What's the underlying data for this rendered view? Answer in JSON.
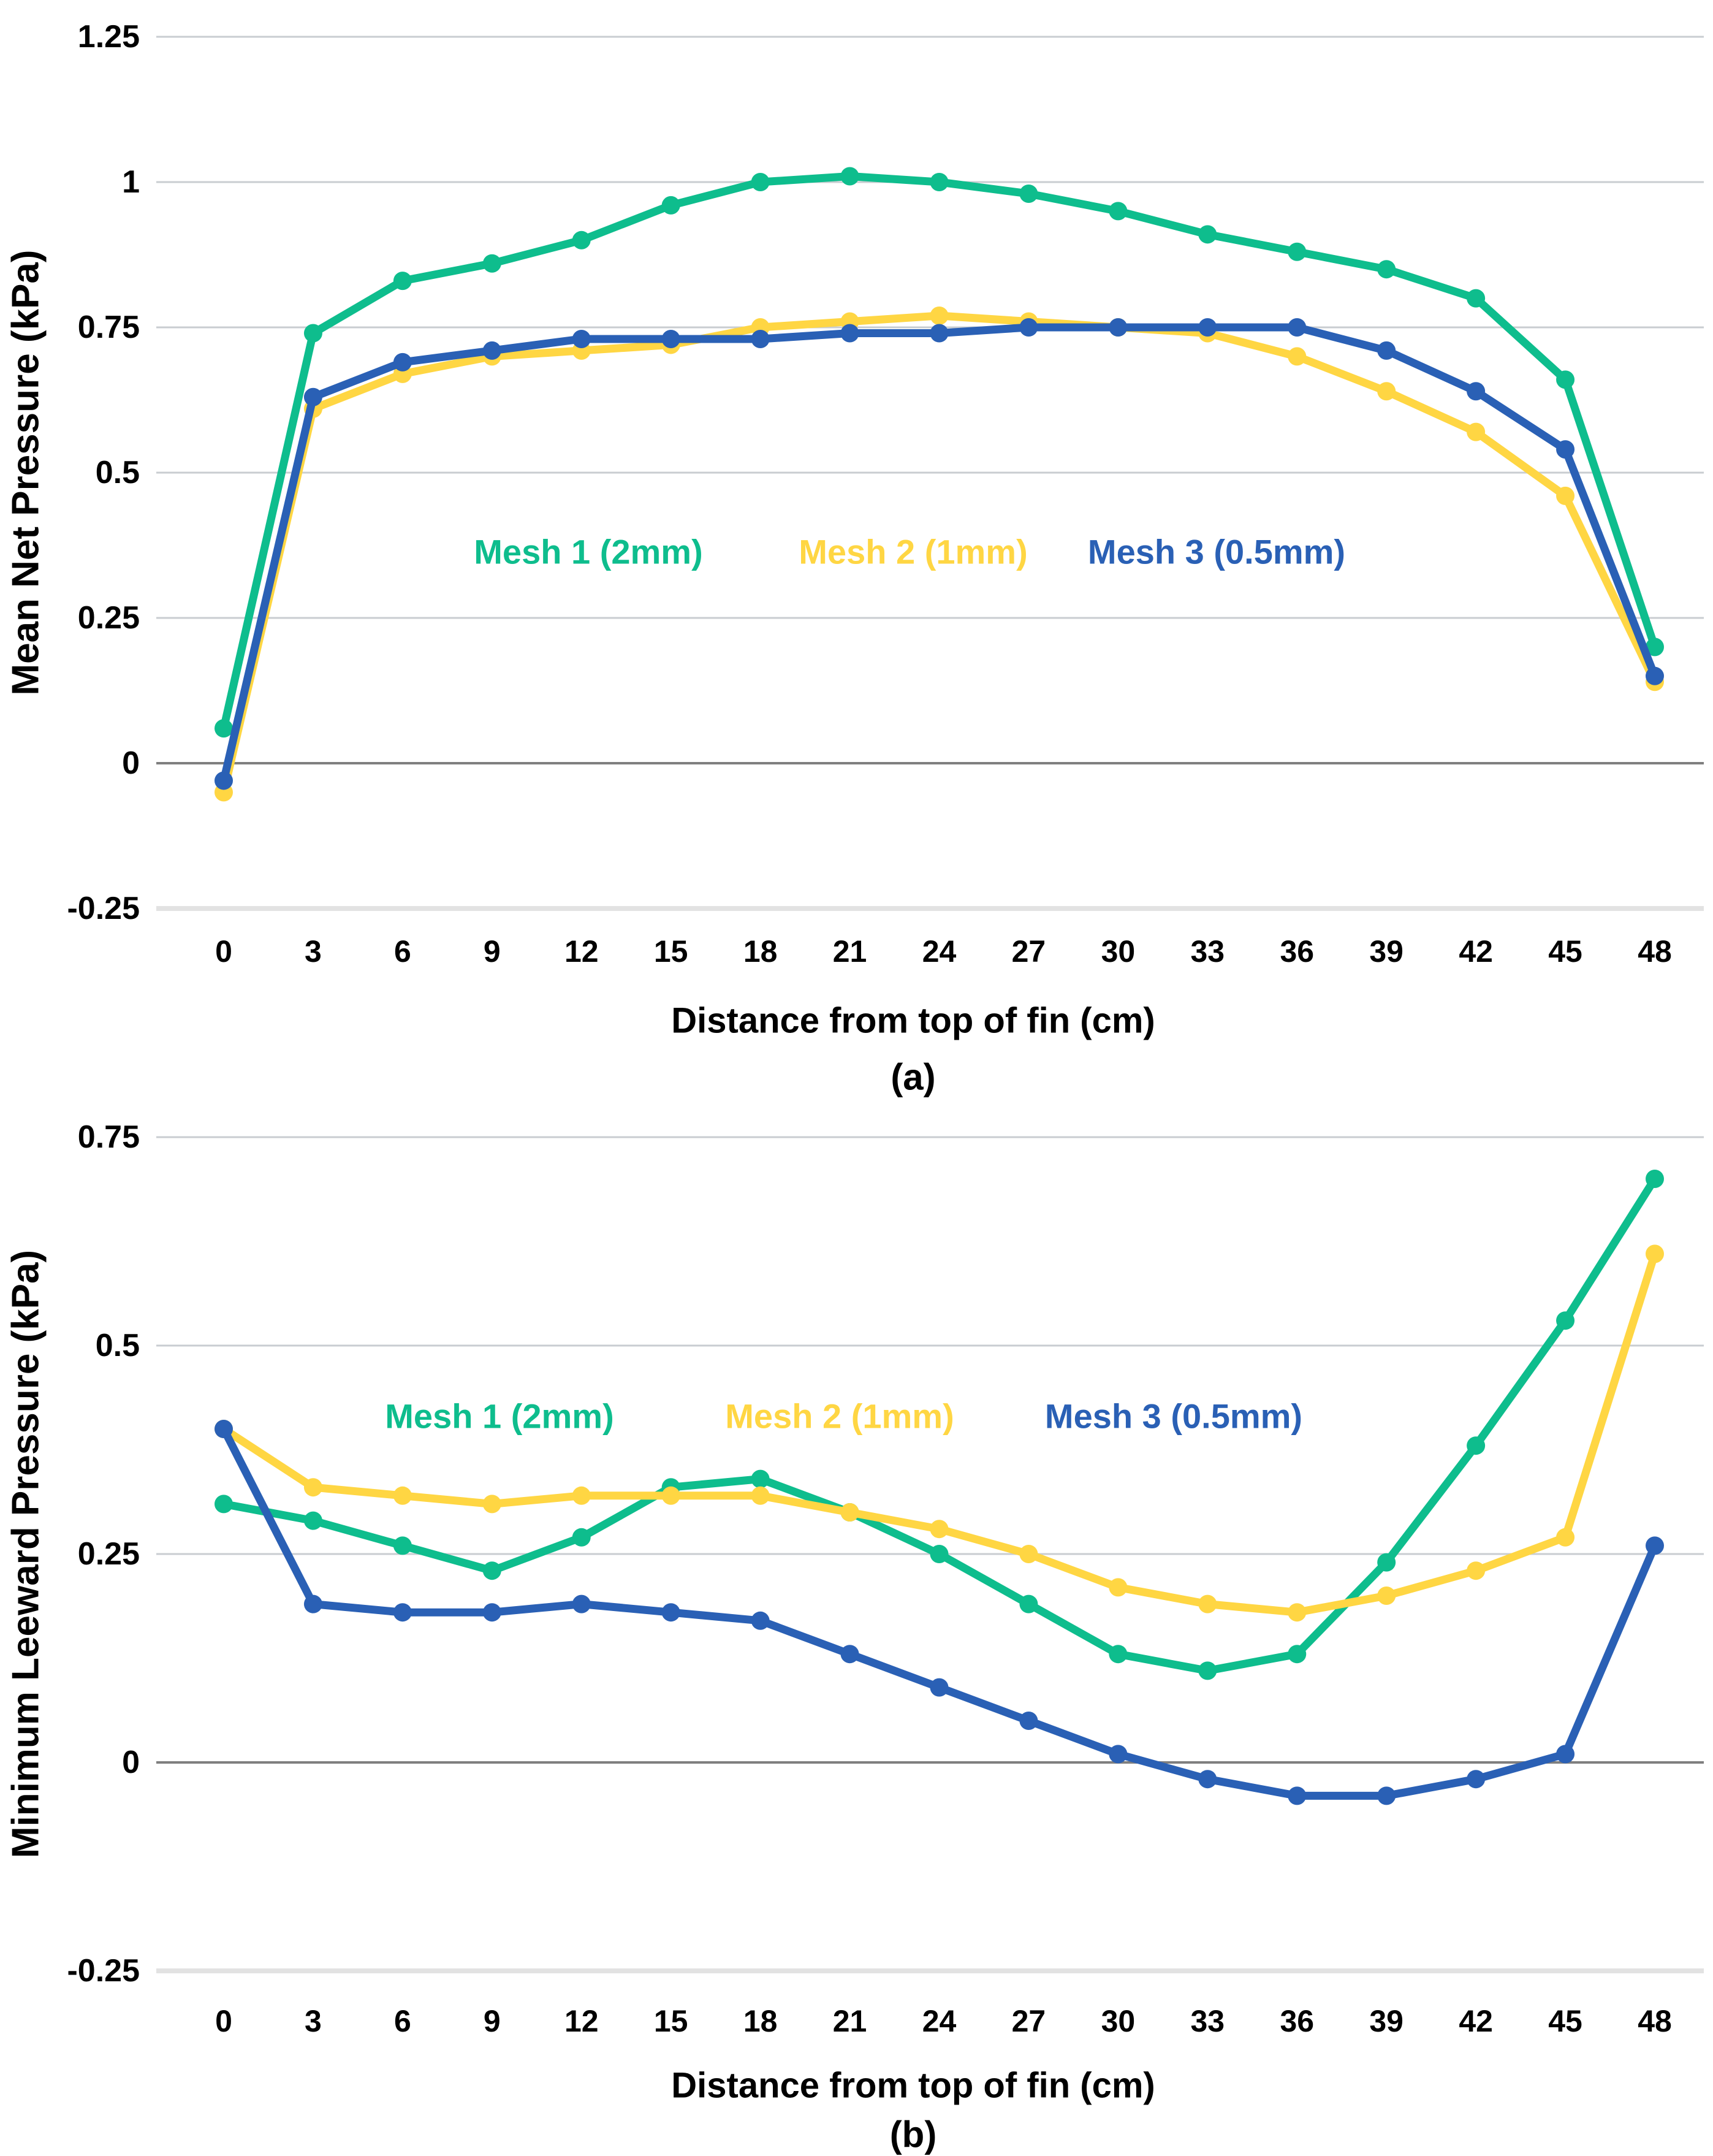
{
  "page_background": "#ffffff",
  "grid_color": "#c9cdd1",
  "zero_line_color": "#7f7f7f",
  "baseline_color": "#e2e2e2",
  "chart_data": [
    {
      "type": "line",
      "panel": "a",
      "caption": "(a)",
      "xlabel": "Distance from top of fin (cm)",
      "ylabel": "Mean Net Pressure (kPa)",
      "x": [
        0,
        3,
        6,
        9,
        12,
        15,
        18,
        21,
        24,
        27,
        30,
        33,
        36,
        39,
        42,
        45,
        48
      ],
      "xtick_labels": [
        "0",
        "3",
        "6",
        "9",
        "12",
        "15",
        "18",
        "21",
        "24",
        "27",
        "30",
        "33",
        "36",
        "39",
        "42",
        "45",
        "48"
      ],
      "ylim": [
        -0.25,
        1.25
      ],
      "yticks": [
        1.25,
        1,
        0.75,
        0.5,
        0.25,
        0,
        -0.25
      ],
      "ytick_labels": [
        "1.25",
        "1",
        "0.75",
        "0.5",
        "0.25",
        "0",
        "-0.25"
      ],
      "grid": true,
      "legend_position": "inside-plot-row",
      "series": [
        {
          "name": "Mesh 1 (2mm)",
          "color": "#0ebd8d",
          "values": [
            0.06,
            0.74,
            0.83,
            0.86,
            0.9,
            0.96,
            1.0,
            1.01,
            1.0,
            0.98,
            0.95,
            0.91,
            0.88,
            0.85,
            0.8,
            0.66,
            0.2
          ]
        },
        {
          "name": "Mesh 2 (1mm)",
          "color": "#ffd643",
          "values": [
            -0.05,
            0.61,
            0.67,
            0.7,
            0.71,
            0.72,
            0.75,
            0.76,
            0.77,
            0.76,
            0.75,
            0.74,
            0.7,
            0.64,
            0.57,
            0.46,
            0.14
          ]
        },
        {
          "name": "Mesh 3 (0.5mm)",
          "color": "#2a60b5",
          "values": [
            -0.03,
            0.63,
            0.69,
            0.71,
            0.73,
            0.73,
            0.73,
            0.74,
            0.74,
            0.75,
            0.75,
            0.75,
            0.75,
            0.71,
            0.64,
            0.54,
            0.15
          ]
        }
      ]
    },
    {
      "type": "line",
      "panel": "b",
      "caption": "(b)",
      "xlabel": "Distance from top of fin (cm)",
      "ylabel": "Minimum Leeward Pressure (kPa)",
      "x": [
        0,
        3,
        6,
        9,
        12,
        15,
        18,
        21,
        24,
        27,
        30,
        33,
        36,
        39,
        42,
        45,
        48
      ],
      "xtick_labels": [
        "0",
        "3",
        "6",
        "9",
        "12",
        "15",
        "18",
        "21",
        "24",
        "27",
        "30",
        "33",
        "36",
        "39",
        "42",
        "45",
        "48"
      ],
      "ylim": [
        -0.25,
        0.75
      ],
      "yticks": [
        0.75,
        0.5,
        0.25,
        0,
        -0.25
      ],
      "ytick_labels": [
        "0.75",
        "0.5",
        "0.25",
        "0",
        "-0.25"
      ],
      "grid": true,
      "legend_position": "inside-plot-row",
      "series": [
        {
          "name": "Mesh 1 (2mm)",
          "color": "#0ebd8d",
          "values": [
            0.31,
            0.29,
            0.26,
            0.23,
            0.27,
            0.33,
            0.34,
            0.3,
            0.25,
            0.19,
            0.13,
            0.11,
            0.13,
            0.24,
            0.38,
            0.53,
            0.7
          ]
        },
        {
          "name": "Mesh 2 (1mm)",
          "color": "#ffd643",
          "values": [
            0.4,
            0.33,
            0.32,
            0.31,
            0.32,
            0.32,
            0.32,
            0.3,
            0.28,
            0.25,
            0.21,
            0.19,
            0.18,
            0.2,
            0.23,
            0.27,
            0.61
          ]
        },
        {
          "name": "Mesh 3 (0.5mm)",
          "color": "#2a60b5",
          "values": [
            0.4,
            0.19,
            0.18,
            0.18,
            0.19,
            0.18,
            0.17,
            0.13,
            0.09,
            0.05,
            0.01,
            -0.02,
            -0.04,
            -0.04,
            -0.02,
            0.01,
            0.26
          ]
        }
      ]
    }
  ]
}
